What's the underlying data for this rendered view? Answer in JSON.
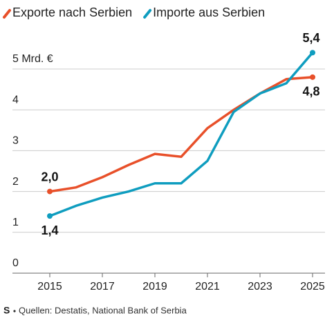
{
  "chart_data": {
    "type": "line",
    "x": [
      2015,
      2016,
      2017,
      2018,
      2019,
      2020,
      2021,
      2022,
      2023,
      2024,
      2025
    ],
    "series": [
      {
        "name": "Exporte nach Serbien",
        "color": "#e8502a",
        "values": [
          2.0,
          2.1,
          2.35,
          2.65,
          2.92,
          2.85,
          3.55,
          4.0,
          4.4,
          4.75,
          4.8
        ],
        "value_labels": [
          "2,0",
          null,
          null,
          null,
          null,
          null,
          null,
          null,
          null,
          null,
          "4,8"
        ]
      },
      {
        "name": "Importe aus Serbien",
        "color": "#0f9dbf",
        "values": [
          1.4,
          1.65,
          1.85,
          2.0,
          2.2,
          2.2,
          2.75,
          3.95,
          4.4,
          4.65,
          5.4
        ],
        "value_labels": [
          "1,4",
          null,
          null,
          null,
          null,
          null,
          null,
          null,
          null,
          null,
          "5,4"
        ]
      }
    ],
    "xlim": [
      2015,
      2025
    ],
    "xticks": [
      2015,
      2017,
      2019,
      2021,
      2023,
      2025
    ],
    "ylim": [
      0,
      5
    ],
    "yticks": [
      0,
      1,
      2,
      3,
      4,
      {
        "value": 5,
        "label": "5 Mrd. €"
      }
    ],
    "grid": true,
    "source": "Quellen: Destatis, National Bank of Serbia"
  }
}
